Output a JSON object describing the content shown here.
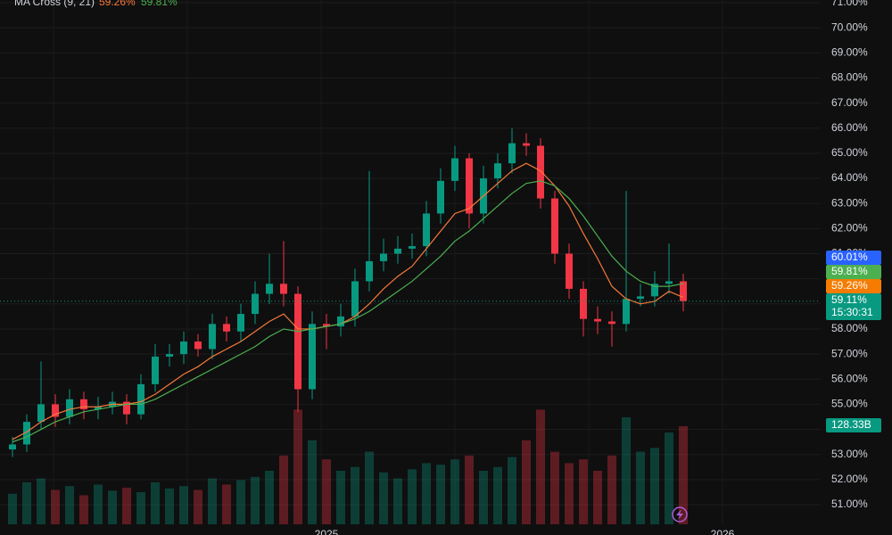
{
  "chart_data": {
    "type": "candlestick",
    "legend": {
      "title": "MA Cross (9, 21)",
      "fast": "59.26%",
      "slow": "59.81%"
    },
    "categories": [
      null,
      null,
      null,
      null,
      null,
      null,
      null,
      null,
      null,
      null,
      null,
      null,
      null,
      null,
      null,
      null,
      null,
      null,
      null,
      null,
      null,
      null,
      "2025",
      null,
      null,
      null,
      null,
      null,
      null,
      null,
      null,
      null,
      null,
      null,
      null,
      null,
      null,
      null,
      null,
      null,
      null,
      null,
      null,
      null,
      null,
      null,
      null,
      null
    ],
    "future_label": "2026",
    "open": [
      53.2,
      53.4,
      54.3,
      55.0,
      54.5,
      55.2,
      54.8,
      54.9,
      55.1,
      54.6,
      55.8,
      56.9,
      57.0,
      57.5,
      57.2,
      58.2,
      57.9,
      58.6,
      59.4,
      59.8,
      59.4,
      55.6,
      58.2,
      58.1,
      58.5,
      59.9,
      60.7,
      61.0,
      61.2,
      61.3,
      62.6,
      63.9,
      64.8,
      62.6,
      64.0,
      64.6,
      65.4,
      65.3,
      63.2,
      61.0,
      59.6,
      58.4,
      58.3,
      58.2,
      59.2,
      59.3,
      59.8,
      59.9
    ],
    "high": [
      53.7,
      54.6,
      56.7,
      55.4,
      55.6,
      55.5,
      55.3,
      55.5,
      55.4,
      56.2,
      57.4,
      57.4,
      57.9,
      57.8,
      58.6,
      58.5,
      59.0,
      59.9,
      61.0,
      61.5,
      59.7,
      58.7,
      58.6,
      59.0,
      60.4,
      64.3,
      61.6,
      61.7,
      61.8,
      63.1,
      64.4,
      65.3,
      65.0,
      64.5,
      65.0,
      66.0,
      65.8,
      65.6,
      63.5,
      61.4,
      59.9,
      58.9,
      58.7,
      63.5,
      59.8,
      60.3,
      61.4,
      60.2
    ],
    "low": [
      52.9,
      53.1,
      54.0,
      54.1,
      54.2,
      54.4,
      54.4,
      54.6,
      54.2,
      54.4,
      55.5,
      56.5,
      56.6,
      56.9,
      56.8,
      57.5,
      57.5,
      58.2,
      59.0,
      58.9,
      54.7,
      55.2,
      57.2,
      57.7,
      58.1,
      59.5,
      60.3,
      60.6,
      60.8,
      60.9,
      62.2,
      63.5,
      62.0,
      62.2,
      63.6,
      64.2,
      64.9,
      62.8,
      60.6,
      59.2,
      57.7,
      57.8,
      57.3,
      57.9,
      58.9,
      58.9,
      59.4,
      58.7
    ],
    "close": [
      53.4,
      54.3,
      55.0,
      54.5,
      55.2,
      54.8,
      54.9,
      55.1,
      54.6,
      55.8,
      56.9,
      57.0,
      57.5,
      57.2,
      58.2,
      57.9,
      58.6,
      59.4,
      59.8,
      59.4,
      55.6,
      58.2,
      58.1,
      58.5,
      59.9,
      60.7,
      61.0,
      61.2,
      61.3,
      62.6,
      63.9,
      64.8,
      62.6,
      64.0,
      64.6,
      65.4,
      65.3,
      63.2,
      61.0,
      59.6,
      58.4,
      58.3,
      58.2,
      59.2,
      59.3,
      59.8,
      59.9,
      59.11
    ],
    "up_color": "#089981",
    "down_color": "#f23645",
    "series": [
      {
        "name": "MA 9",
        "color": "#f7793b",
        "values": [
          53.6,
          53.9,
          54.3,
          54.6,
          54.8,
          54.9,
          54.9,
          55.0,
          55.0,
          55.1,
          55.4,
          55.8,
          56.2,
          56.5,
          56.9,
          57.2,
          57.5,
          57.9,
          58.3,
          58.6,
          58.0,
          58.0,
          58.1,
          58.2,
          58.5,
          59.0,
          59.6,
          60.1,
          60.5,
          61.2,
          61.9,
          62.6,
          62.8,
          63.3,
          63.8,
          64.3,
          64.6,
          64.3,
          63.7,
          62.9,
          61.8,
          60.8,
          59.7,
          59.2,
          59.0,
          59.1,
          59.5,
          59.26
        ]
      },
      {
        "name": "MA 21",
        "color": "#4caf50",
        "values": [
          53.5,
          53.7,
          54.0,
          54.3,
          54.5,
          54.7,
          54.8,
          54.9,
          55.0,
          55.0,
          55.2,
          55.5,
          55.8,
          56.1,
          56.4,
          56.7,
          57.0,
          57.3,
          57.7,
          58.0,
          57.9,
          58.0,
          58.1,
          58.2,
          58.4,
          58.7,
          59.1,
          59.5,
          59.9,
          60.4,
          60.9,
          61.5,
          61.9,
          62.4,
          62.9,
          63.4,
          63.8,
          63.9,
          63.7,
          63.2,
          62.5,
          61.7,
          60.9,
          60.3,
          59.9,
          59.7,
          59.7,
          59.81
        ]
      }
    ],
    "volume": [
      40,
      55,
      60,
      45,
      50,
      38,
      52,
      44,
      48,
      42,
      55,
      47,
      50,
      45,
      60,
      52,
      58,
      62,
      70,
      90,
      150,
      110,
      85,
      70,
      75,
      95,
      68,
      60,
      72,
      80,
      78,
      85,
      90,
      70,
      75,
      88,
      110,
      150,
      95,
      80,
      85,
      70,
      90,
      140,
      95,
      100,
      120,
      128.33
    ],
    "volume_lim": [
      0,
      350
    ],
    "price_labels": [
      "60.01%",
      "59.81%",
      "59.26%",
      "59.11%",
      "15:30:31",
      "128.33B"
    ],
    "ylim": [
      50.5,
      71
    ],
    "yticks": [
      {
        "value": 51,
        "label": "51.00%"
      },
      {
        "value": 52,
        "label": "52.00%"
      },
      {
        "value": 53,
        "label": "53.00%"
      },
      {
        "value": 54,
        "label": "54.00%"
      },
      {
        "value": 55,
        "label": "55.00%"
      },
      {
        "value": 56,
        "label": "56.00%"
      },
      {
        "value": 57,
        "label": "57.00%"
      },
      {
        "value": 58,
        "label": "58.00%"
      },
      {
        "value": 59,
        "label": "59.00%"
      },
      {
        "value": 60,
        "label": "60.00%"
      },
      {
        "value": 61,
        "label": "61.00%"
      },
      {
        "value": 62,
        "label": "62.00%"
      },
      {
        "value": 63,
        "label": "63.00%"
      },
      {
        "value": 64,
        "label": "64.00%"
      },
      {
        "value": 65,
        "label": "65.00%"
      },
      {
        "value": 66,
        "label": "66.00%"
      },
      {
        "value": 67,
        "label": "67.00%"
      },
      {
        "value": 68,
        "label": "68.00%"
      },
      {
        "value": 69,
        "label": "69.00%"
      },
      {
        "value": 70,
        "label": "70.00%"
      },
      {
        "value": 71,
        "label": "71.00%"
      }
    ],
    "grid": true
  }
}
